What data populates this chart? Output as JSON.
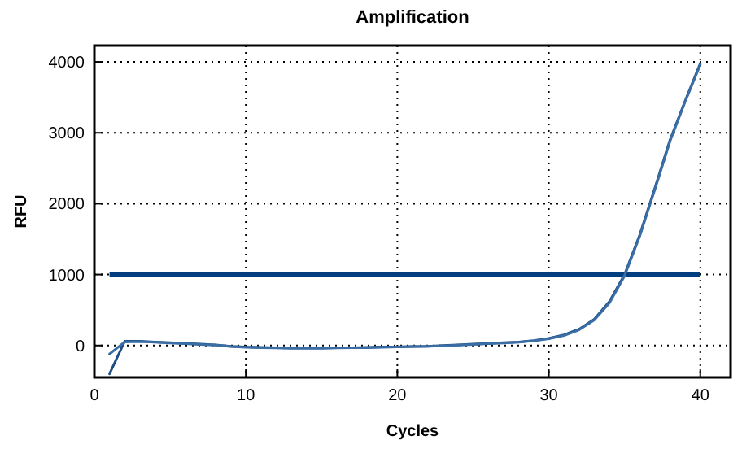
{
  "chart_data": {
    "type": "line",
    "title": "Amplification",
    "xlabel": "Cycles",
    "ylabel": "RFU",
    "x": [
      1,
      2,
      3,
      4,
      5,
      6,
      7,
      8,
      9,
      10,
      11,
      12,
      13,
      14,
      15,
      16,
      17,
      18,
      19,
      20,
      21,
      22,
      23,
      24,
      25,
      26,
      27,
      28,
      29,
      30,
      31,
      32,
      33,
      34,
      35,
      36,
      37,
      38,
      39,
      40
    ],
    "series": [
      {
        "color": "#1f4e85",
        "values": [
          -400,
          60,
          60,
          50,
          40,
          30,
          20,
          10,
          -10,
          -20,
          -25,
          -30,
          -35,
          -35,
          -35,
          -30,
          -30,
          -25,
          -20,
          -20,
          -15,
          -10,
          0,
          10,
          20,
          30,
          40,
          50,
          70,
          100,
          150,
          230,
          370,
          620,
          1000,
          1560,
          2220,
          2900,
          3450,
          3980
        ]
      },
      {
        "color": "#3a6ea5",
        "values": [
          -120,
          50,
          55,
          45,
          35,
          25,
          15,
          5,
          -15,
          -25,
          -30,
          -35,
          -40,
          -40,
          -40,
          -35,
          -30,
          -30,
          -25,
          -20,
          -15,
          -10,
          -5,
          5,
          15,
          25,
          35,
          45,
          65,
          95,
          140,
          220,
          360,
          600,
          980,
          1540,
          2200,
          2880,
          3440,
          3960
        ]
      }
    ],
    "xlim": [
      0,
      42
    ],
    "xticks": [
      0,
      10,
      20,
      30,
      40
    ],
    "ylim": [
      -450,
      4230
    ],
    "yticks": [
      0,
      1000,
      2000,
      3000,
      4000
    ],
    "grid": true,
    "line_style": "solid",
    "marker": "none",
    "ref_lines": [
      {
        "axis": "y",
        "value": 1000,
        "color": "#003f7f"
      }
    ]
  }
}
